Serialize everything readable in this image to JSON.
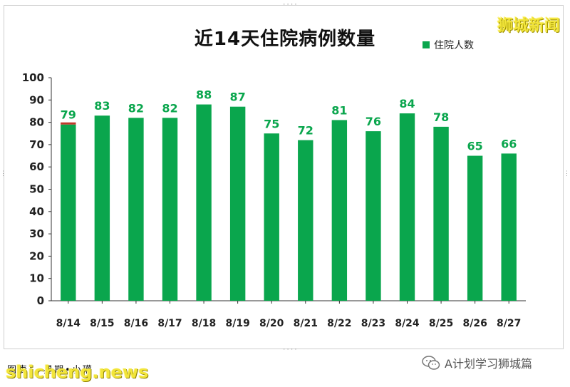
{
  "page": {
    "brand": "狮城新闻",
    "footer_credit": "图表： 星期•小瓘",
    "watermark_site": "shicheng.news",
    "wechat_account": "A计划学习狮城篇"
  },
  "colors": {
    "bar": "#0aa64d",
    "label": "#0aa64d",
    "marker": "#c0392b"
  },
  "chart_data": {
    "type": "bar",
    "title": "近14天住院病例数量",
    "categories": [
      "8/14",
      "8/15",
      "8/16",
      "8/17",
      "8/18",
      "8/19",
      "8/20",
      "8/21",
      "8/22",
      "8/23",
      "8/24",
      "8/25",
      "8/26",
      "8/27"
    ],
    "series": [
      {
        "name": "住院人数",
        "values": [
          79,
          83,
          82,
          82,
          88,
          87,
          75,
          72,
          81,
          76,
          84,
          78,
          65,
          66
        ]
      }
    ],
    "ylim": [
      0,
      100
    ],
    "yticks": [
      0,
      10,
      20,
      30,
      40,
      50,
      60,
      70,
      80,
      90,
      100
    ],
    "grid": false,
    "legend": "top-right"
  }
}
